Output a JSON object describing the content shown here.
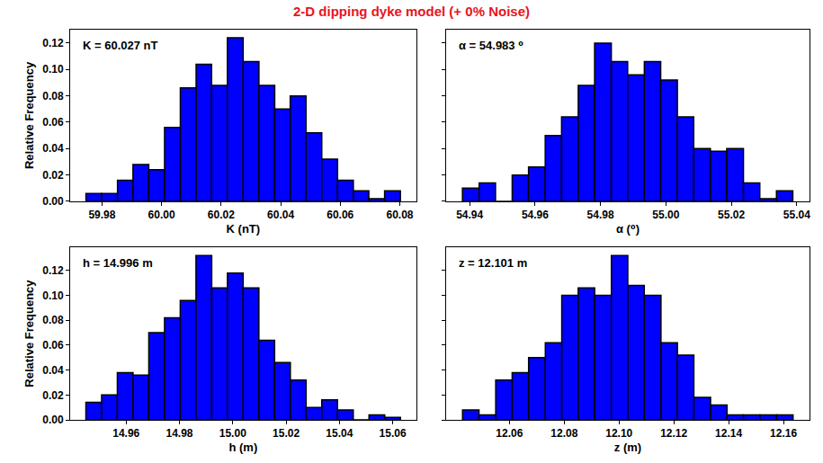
{
  "title": "2-D dipping dyke model (+ 0% Noise)",
  "chart_data": [
    {
      "type": "histogram",
      "annotation": "K = 60.027 nT",
      "xlabel": "K (nT)",
      "ylabel": "Relative Frequency",
      "color": "#0000ff",
      "bins": [
        59.9746,
        59.9799,
        59.9852,
        59.9904,
        59.9957,
        60.001,
        60.0063,
        60.0116,
        60.0168,
        60.0221,
        60.0274,
        60.0327,
        60.038,
        60.0432,
        60.0485,
        60.0538,
        60.0591,
        60.0644,
        60.0696,
        60.0749,
        60.0802
      ],
      "values": [
        0.006,
        0.006,
        0.016,
        0.028,
        0.024,
        0.056,
        0.086,
        0.104,
        0.088,
        0.124,
        0.106,
        0.088,
        0.07,
        0.08,
        0.052,
        0.032,
        0.016,
        0.008,
        0.002,
        0.008
      ],
      "xlim": [
        59.9693,
        60.0855
      ],
      "xticks": [
        59.98,
        {
          "value": 60,
          "label": "60.00"
        },
        60.02,
        60.04,
        60.06,
        60.08
      ],
      "ylim": [
        0,
        0.1302
      ],
      "yticks": [
        {
          "value": 0,
          "label": "0.00"
        },
        0.02,
        0.04,
        0.06,
        0.08,
        {
          "value": 0.1,
          "label": "0.10"
        },
        0.12
      ]
    },
    {
      "type": "histogram",
      "annotation": "α = 54.983 ⁰",
      "xlabel": "α (⁰)",
      "color": "#0000ff",
      "bins": [
        54.9378,
        54.9429,
        54.9479,
        54.953,
        54.958,
        54.9631,
        54.9681,
        54.9732,
        54.9782,
        54.9833,
        54.9883,
        54.9934,
        54.9984,
        55.0035,
        55.0085,
        55.0136,
        55.0186,
        55.0237,
        55.0287,
        55.0338,
        55.0388
      ],
      "values": [
        0.01,
        0.014,
        0,
        0.02,
        0.026,
        0.05,
        0.064,
        0.088,
        0.12,
        0.106,
        0.096,
        0.106,
        0.092,
        0.064,
        0.04,
        0.038,
        0.04,
        0.014,
        0.002,
        0.008
      ],
      "xlim": [
        54.9328,
        55.0439
      ],
      "xticks": [
        54.94,
        54.96,
        54.98,
        {
          "value": 55,
          "label": "55.00"
        },
        55.02,
        55.04
      ],
      "ylim": [
        0,
        0.1302
      ],
      "yticks": [
        0,
        0.02,
        0.04,
        0.06,
        0.08,
        0.1,
        0.12
      ],
      "tick_labels": "x"
    },
    {
      "type": "histogram",
      "annotation": "h = 14.996 m",
      "xlabel": "h (m)",
      "ylabel": "Relative Frequency",
      "color": "#0000ff",
      "bins": [
        14.9449,
        14.9508,
        14.9567,
        14.9626,
        14.9685,
        14.9744,
        14.9803,
        14.9862,
        14.9921,
        14.998,
        15.0039,
        15.0098,
        15.0157,
        15.0216,
        15.0275,
        15.0334,
        15.0393,
        15.0452,
        15.0511,
        15.057,
        15.0629
      ],
      "values": [
        0.014,
        0.02,
        0.038,
        0.036,
        0.07,
        0.082,
        0.096,
        0.132,
        0.106,
        0.118,
        0.106,
        0.064,
        0.046,
        0.032,
        0.01,
        0.016,
        0.008,
        0,
        0.004,
        0.002
      ],
      "xlim": [
        14.939,
        15.0688
      ],
      "xticks": [
        14.96,
        14.98,
        {
          "value": 15,
          "label": "15.00"
        },
        15.02,
        15.04,
        15.06
      ],
      "ylim": [
        0,
        0.1386
      ],
      "yticks": [
        {
          "value": 0,
          "label": "0.00"
        },
        0.02,
        0.04,
        0.06,
        0.08,
        {
          "value": 0.1,
          "label": "0.10"
        },
        0.12
      ]
    },
    {
      "type": "histogram",
      "annotation": "z = 12.101 m",
      "xlabel": "z (m)",
      "color": "#0000ff",
      "bins": [
        12.0429,
        12.0489,
        12.055,
        12.061,
        12.067,
        12.0731,
        12.0791,
        12.0851,
        12.0911,
        12.0972,
        12.1032,
        12.1092,
        12.1153,
        12.1213,
        12.1273,
        12.1334,
        12.1394,
        12.1454,
        12.1514,
        12.1575,
        12.1635
      ],
      "values": [
        0.008,
        0.004,
        0.032,
        0.038,
        0.05,
        0.062,
        0.1,
        0.106,
        0.1,
        0.132,
        0.108,
        0.1,
        0.062,
        0.052,
        0.018,
        0.012,
        0.004,
        0.004,
        0.004,
        0.004
      ],
      "xlim": [
        12.0369,
        12.1695
      ],
      "xticks": [
        12.06,
        12.08,
        {
          "value": 12.1,
          "label": "12.10"
        },
        12.12,
        12.14,
        12.16
      ],
      "ylim": [
        0,
        0.1386
      ],
      "yticks": [
        0,
        0.02,
        0.04,
        0.06,
        0.08,
        0.1,
        0.12
      ],
      "tick_labels": "x"
    }
  ]
}
